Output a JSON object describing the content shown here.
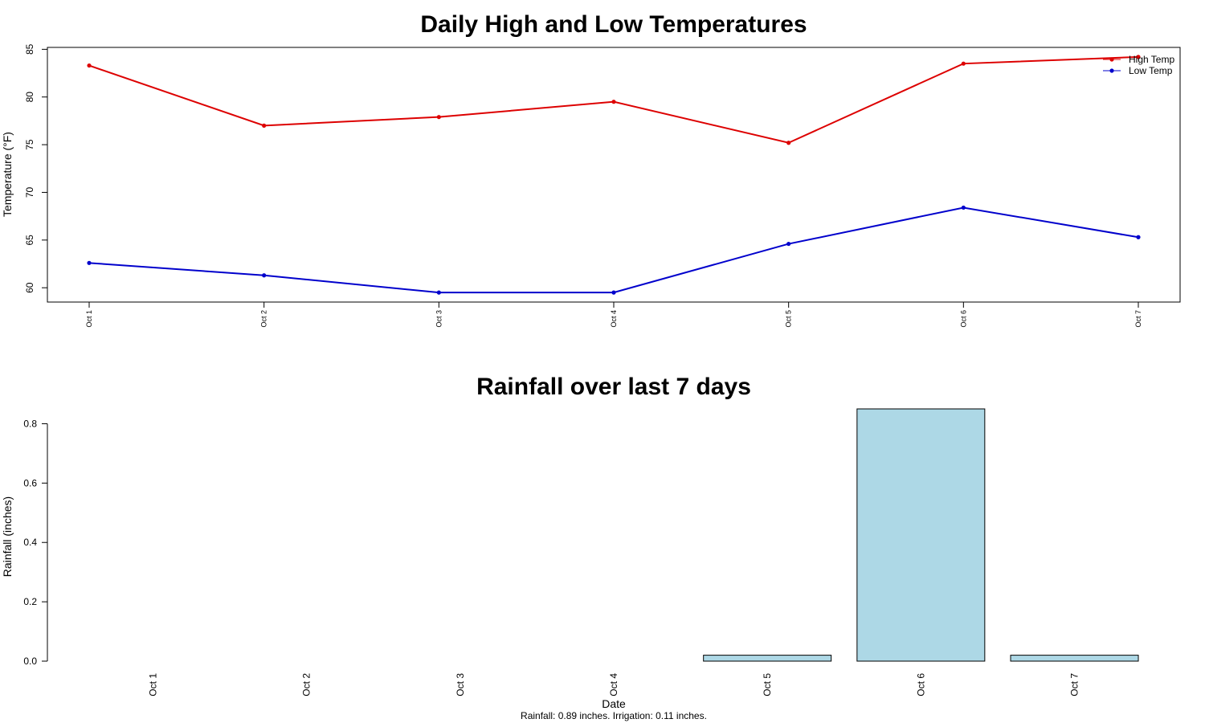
{
  "charts": [
    {
      "type": "line",
      "title": "Daily High and Low Temperatures",
      "ylabel": "Temperature (°F)",
      "categories": [
        "Oct 1",
        "Oct 2",
        "Oct 3",
        "Oct 4",
        "Oct 5",
        "Oct 6",
        "Oct 7"
      ],
      "yticks": [
        60,
        65,
        70,
        75,
        80,
        85
      ],
      "ylim": [
        58.5,
        85.2
      ],
      "series": [
        {
          "name": "High Temp",
          "color": "#dd0000",
          "values": [
            83.3,
            77.0,
            77.9,
            79.5,
            75.2,
            83.5,
            84.2
          ]
        },
        {
          "name": "Low Temp",
          "color": "#0000cc",
          "values": [
            62.6,
            61.3,
            59.5,
            59.5,
            64.6,
            68.4,
            65.3
          ]
        }
      ],
      "legend": "top-right",
      "grid": false
    },
    {
      "type": "bar",
      "title": "Rainfall over last 7 days",
      "xlabel": "Date",
      "ylabel": "Rainfall (inches)",
      "categories": [
        "Oct 1",
        "Oct 2",
        "Oct 3",
        "Oct 4",
        "Oct 5",
        "Oct 6",
        "Oct 7"
      ],
      "values": [
        0.0,
        0.0,
        0.0,
        0.0,
        0.02,
        0.85,
        0.02
      ],
      "yticks": [
        "0.0",
        "0.2",
        "0.4",
        "0.6",
        "0.8"
      ],
      "ylim": [
        0,
        0.85
      ],
      "bar_color": "#add8e6",
      "caption": "Rainfall: 0.89 inches.   Irrigation: 0.11 inches.",
      "grid": false
    }
  ]
}
